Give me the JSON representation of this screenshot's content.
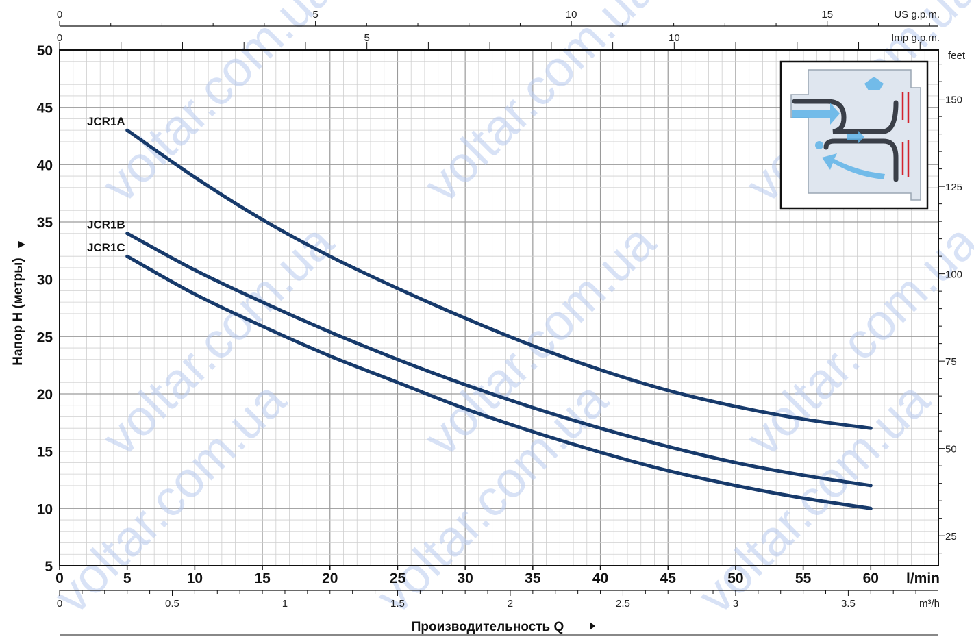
{
  "chart_data": {
    "type": "line",
    "xlabel": "Производительность Q",
    "ylabel": "Напор H (метры)",
    "x_unit": "l/min",
    "y_unit": "",
    "xlim": [
      0,
      65
    ],
    "ylim": [
      5,
      50
    ],
    "x_ticks": [
      0,
      5,
      10,
      15,
      20,
      25,
      30,
      35,
      40,
      45,
      50,
      55,
      60
    ],
    "y_ticks": [
      5,
      10,
      15,
      20,
      25,
      30,
      35,
      40,
      45,
      50
    ],
    "grid": true,
    "series": [
      {
        "name": "JCR1A",
        "x": [
          5,
          10,
          15,
          20,
          25,
          30,
          35,
          40,
          45,
          50,
          55,
          60
        ],
        "y": [
          43,
          38.9,
          35.2,
          32,
          29.2,
          26.6,
          24.2,
          22.1,
          20.3,
          18.9,
          17.8,
          17
        ]
      },
      {
        "name": "JCR1B",
        "x": [
          5,
          10,
          15,
          20,
          25,
          30,
          35,
          40,
          45,
          50,
          55,
          60
        ],
        "y": [
          34,
          30.8,
          28,
          25.4,
          23,
          20.8,
          18.8,
          17,
          15.4,
          14,
          12.9,
          12
        ]
      },
      {
        "name": "JCR1C",
        "x": [
          5,
          10,
          15,
          20,
          25,
          30,
          35,
          40,
          45,
          50,
          55,
          60
        ],
        "y": [
          32,
          28.7,
          25.9,
          23.3,
          21,
          18.7,
          16.7,
          14.9,
          13.3,
          12,
          10.9,
          10
        ]
      }
    ],
    "secondary_axes": {
      "top_us": {
        "unit": "US g.p.m.",
        "ticks": [
          0,
          5,
          10,
          15
        ],
        "factor": 0.264172
      },
      "top_imp": {
        "unit": "Imp g.p.m.",
        "ticks": [
          0,
          5,
          10
        ],
        "factor": 0.219969
      },
      "bottom_m3h": {
        "unit": "m³/h",
        "ticks": [
          "0",
          "0.5",
          "1",
          "1.5",
          "2",
          "2.5",
          "3",
          "3.5"
        ],
        "factor": 0.06
      },
      "right_feet": {
        "unit": "feet",
        "ticks": [
          25,
          50,
          75,
          100,
          125,
          150
        ],
        "factor": 3.28084
      }
    },
    "watermark": "voltar.com.ua"
  },
  "inset": {
    "icon": "pump-cross-section-icon"
  }
}
